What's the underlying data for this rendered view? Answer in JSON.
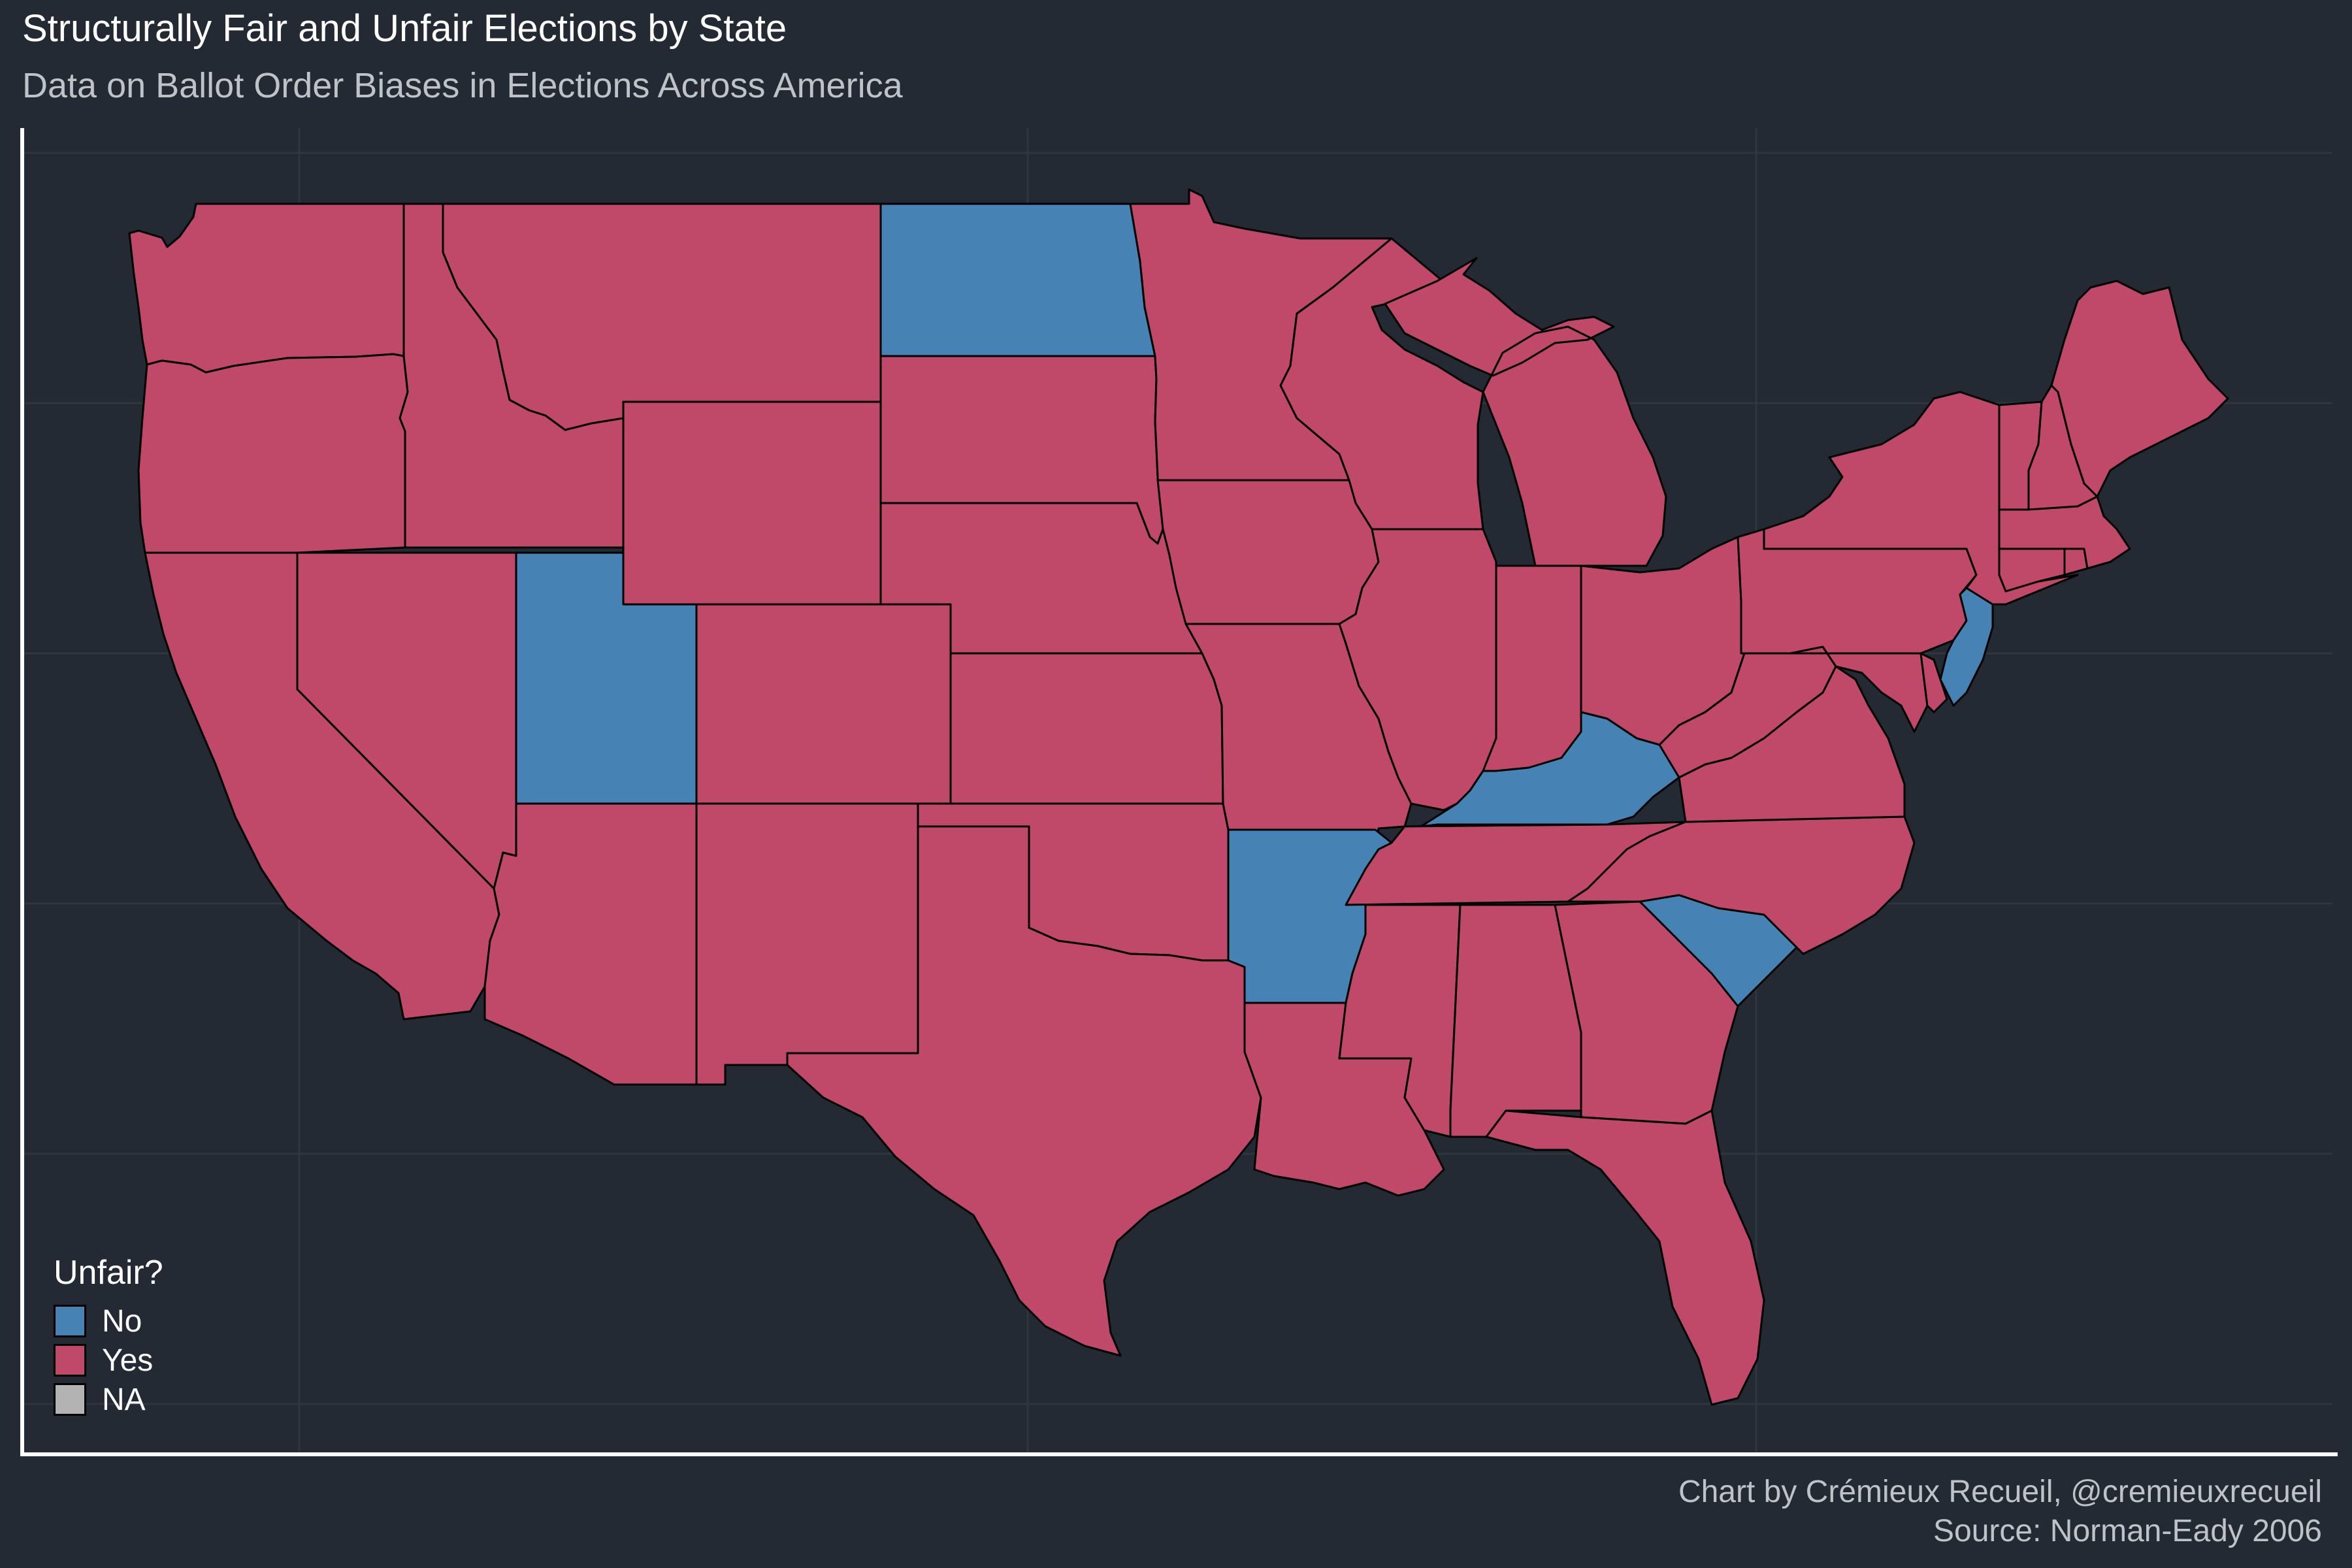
{
  "title": "Structurally Fair and Unfair Elections by State",
  "subtitle": "Data on Ballot Order Biases in Elections Across America",
  "caption": {
    "line1": "Chart by Crémieux Recueil, @cremieuxrecueil",
    "line2": "Source: Norman-Eady 2006"
  },
  "legend": {
    "title": "Unfair?",
    "items": [
      {
        "label": "No",
        "color": "#4682B4"
      },
      {
        "label": "Yes",
        "color": "#C04868"
      },
      {
        "label": "NA",
        "color": "#B3B3B3"
      }
    ]
  },
  "colors": {
    "background": "#232A33",
    "border": "#000000",
    "grid": "#2E3640",
    "axis": "#FFFFFF"
  },
  "chart_data": {
    "type": "choropleth",
    "variable": "Unfair?",
    "states": [
      {
        "state": "Washington",
        "value": "Yes"
      },
      {
        "state": "Oregon",
        "value": "Yes"
      },
      {
        "state": "California",
        "value": "Yes"
      },
      {
        "state": "Nevada",
        "value": "Yes"
      },
      {
        "state": "Idaho",
        "value": "Yes"
      },
      {
        "state": "Montana",
        "value": "Yes"
      },
      {
        "state": "Wyoming",
        "value": "Yes"
      },
      {
        "state": "Utah",
        "value": "No"
      },
      {
        "state": "Arizona",
        "value": "Yes"
      },
      {
        "state": "Colorado",
        "value": "Yes"
      },
      {
        "state": "New Mexico",
        "value": "Yes"
      },
      {
        "state": "North Dakota",
        "value": "No"
      },
      {
        "state": "South Dakota",
        "value": "Yes"
      },
      {
        "state": "Nebraska",
        "value": "Yes"
      },
      {
        "state": "Kansas",
        "value": "Yes"
      },
      {
        "state": "Oklahoma",
        "value": "Yes"
      },
      {
        "state": "Texas",
        "value": "Yes"
      },
      {
        "state": "Minnesota",
        "value": "Yes"
      },
      {
        "state": "Iowa",
        "value": "Yes"
      },
      {
        "state": "Missouri",
        "value": "Yes"
      },
      {
        "state": "Arkansas",
        "value": "No"
      },
      {
        "state": "Louisiana",
        "value": "Yes"
      },
      {
        "state": "Wisconsin",
        "value": "Yes"
      },
      {
        "state": "Illinois",
        "value": "Yes"
      },
      {
        "state": "Michigan",
        "value": "Yes"
      },
      {
        "state": "Indiana",
        "value": "Yes"
      },
      {
        "state": "Ohio",
        "value": "Yes"
      },
      {
        "state": "Kentucky",
        "value": "No"
      },
      {
        "state": "Tennessee",
        "value": "Yes"
      },
      {
        "state": "Mississippi",
        "value": "Yes"
      },
      {
        "state": "Alabama",
        "value": "Yes"
      },
      {
        "state": "Georgia",
        "value": "Yes"
      },
      {
        "state": "Florida",
        "value": "Yes"
      },
      {
        "state": "South Carolina",
        "value": "No"
      },
      {
        "state": "North Carolina",
        "value": "Yes"
      },
      {
        "state": "Virginia",
        "value": "Yes"
      },
      {
        "state": "West Virginia",
        "value": "Yes"
      },
      {
        "state": "Maryland",
        "value": "Yes"
      },
      {
        "state": "Delaware",
        "value": "Yes"
      },
      {
        "state": "Pennsylvania",
        "value": "Yes"
      },
      {
        "state": "New Jersey",
        "value": "No"
      },
      {
        "state": "New York",
        "value": "Yes"
      },
      {
        "state": "Connecticut",
        "value": "Yes"
      },
      {
        "state": "Rhode Island",
        "value": "Yes"
      },
      {
        "state": "Massachusetts",
        "value": "Yes"
      },
      {
        "state": "Vermont",
        "value": "Yes"
      },
      {
        "state": "New Hampshire",
        "value": "Yes"
      },
      {
        "state": "Maine",
        "value": "Yes"
      }
    ]
  }
}
